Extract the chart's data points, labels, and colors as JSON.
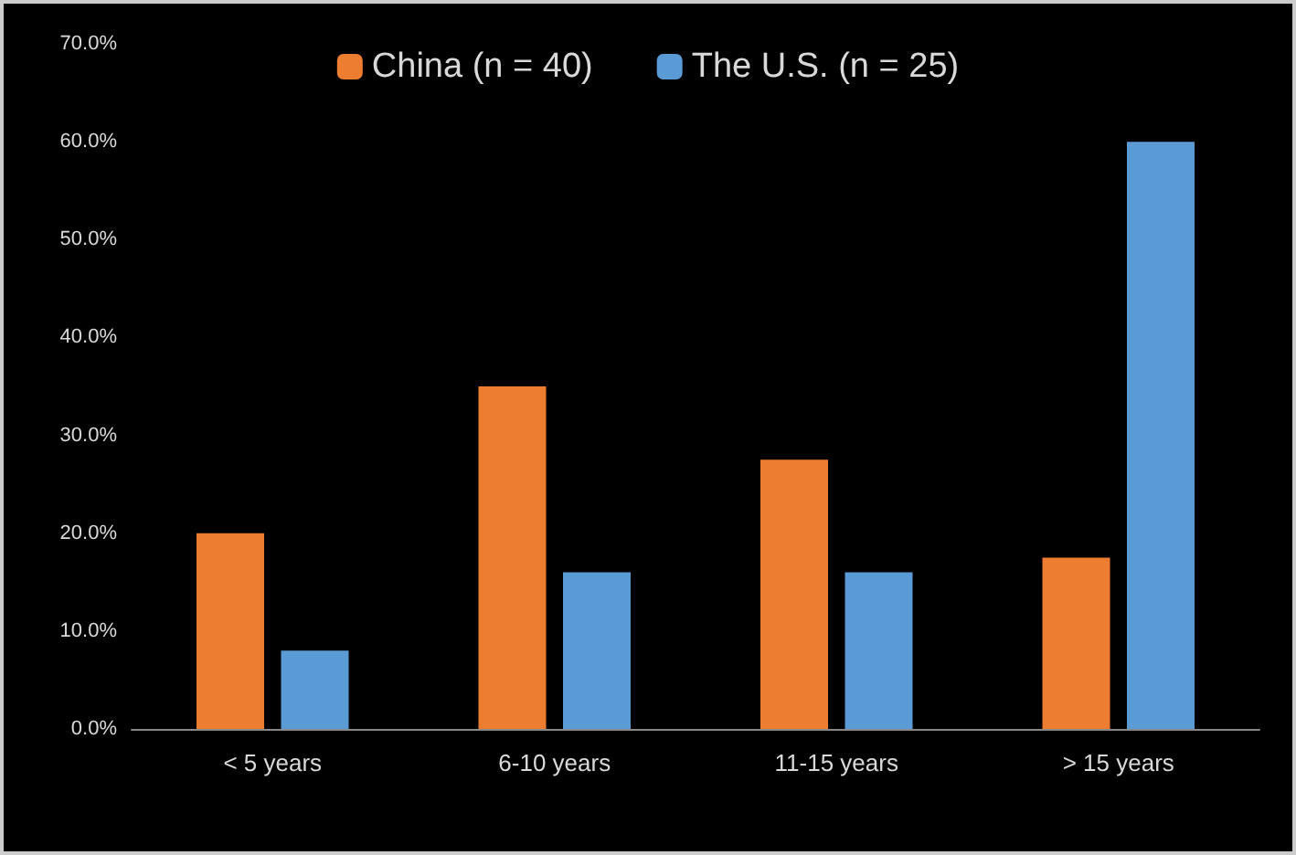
{
  "chart_data": {
    "type": "bar",
    "categories": [
      "< 5 years",
      "6-10 years",
      "11-15 years",
      "> 15 years"
    ],
    "series": [
      {
        "name": "China (n = 40)",
        "color": "#ed7d31",
        "values": [
          20,
          35,
          27.5,
          17.5
        ]
      },
      {
        "name": "The U.S. (n = 25)",
        "color": "#5b9bd5",
        "values": [
          8,
          16,
          16,
          60
        ]
      }
    ],
    "ylim": [
      0,
      70
    ],
    "yticks": [
      {
        "value": 0,
        "label": "0.0%"
      },
      {
        "value": 10,
        "label": "10.0%"
      },
      {
        "value": 20,
        "label": "20.0%"
      },
      {
        "value": 30,
        "label": "30.0%"
      },
      {
        "value": 40,
        "label": "40.0%"
      },
      {
        "value": 50,
        "label": "50.0%"
      },
      {
        "value": 60,
        "label": "60.0%"
      },
      {
        "value": 70,
        "label": "70.0%"
      }
    ],
    "grid": false,
    "legend": "top"
  }
}
